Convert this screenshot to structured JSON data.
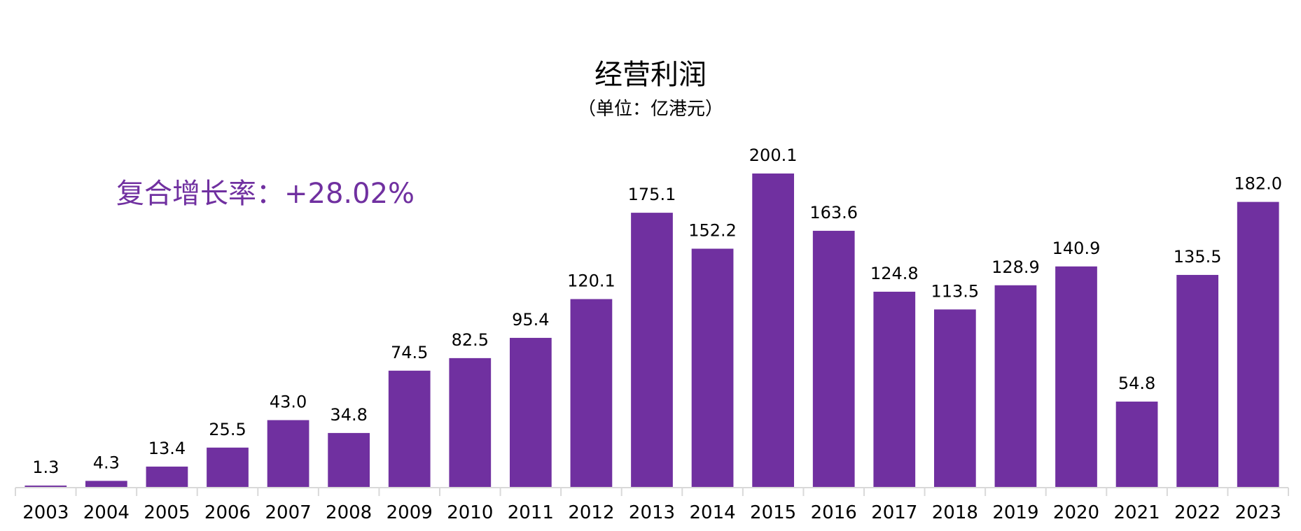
{
  "chart_data": {
    "type": "bar",
    "title": "经营利润",
    "subtitle": "（单位：亿港元）",
    "annotation": "复合增长率：+28.02%",
    "categories": [
      "2003",
      "2004",
      "2005",
      "2006",
      "2007",
      "2008",
      "2009",
      "2010",
      "2011",
      "2012",
      "2013",
      "2014",
      "2015",
      "2016",
      "2017",
      "2018",
      "2019",
      "2020",
      "2021",
      "2022",
      "2023"
    ],
    "values": [
      1.3,
      4.3,
      13.4,
      25.5,
      43.0,
      34.8,
      74.5,
      82.5,
      95.4,
      120.1,
      175.1,
      152.2,
      200.1,
      163.6,
      124.8,
      113.5,
      128.9,
      140.9,
      54.8,
      135.5,
      182.0
    ],
    "value_labels": [
      "1.3",
      "4.3",
      "13.4",
      "25.5",
      "43.0",
      "34.8",
      "74.5",
      "82.5",
      "95.4",
      "120.1",
      "175.1",
      "152.2",
      "200.1",
      "163.6",
      "124.8",
      "113.5",
      "128.9",
      "140.9",
      "54.8",
      "135.5",
      "182.0"
    ],
    "bar_color": "#7030a0",
    "annotation_color": "#7030a0",
    "ylim": [
      0,
      200.1
    ],
    "grid": false,
    "legend": "none"
  }
}
